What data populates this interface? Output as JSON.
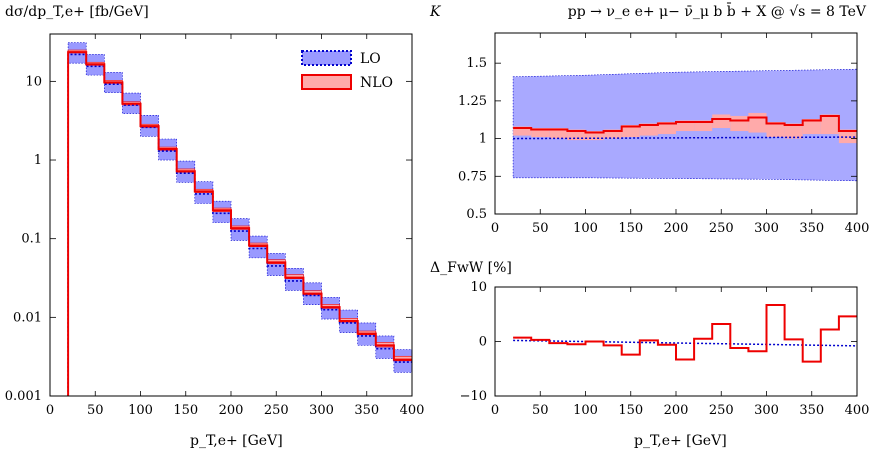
{
  "chart_data": [
    {
      "type": "line",
      "title": "dσ/dp_T,e+ [fb/GeV]",
      "xlabel": "p_T,e+ [GeV]",
      "ylabel": "dσ/dp_T,e+ [fb/GeV]",
      "xlim": [
        0,
        400
      ],
      "ylim": [
        0.001,
        40
      ],
      "yscale": "log",
      "xticks": [
        "0",
        "50",
        "100",
        "150",
        "200",
        "250",
        "300",
        "350",
        "400"
      ],
      "yticks": [
        "0.001",
        "0.01",
        "0.1",
        "1",
        "10"
      ],
      "legend": {
        "placement": "top-right",
        "entries": [
          "LO",
          "NLO"
        ]
      },
      "x_edges": [
        20,
        40,
        60,
        80,
        100,
        120,
        140,
        160,
        180,
        200,
        220,
        240,
        260,
        280,
        300,
        320,
        340,
        360,
        380,
        400
      ],
      "series": [
        {
          "name": "LO",
          "color": "#0000cc",
          "band_color": "#9999ff",
          "values": [
            22,
            15.5,
            9.2,
            5.0,
            2.6,
            1.3,
            0.68,
            0.37,
            0.21,
            0.125,
            0.075,
            0.045,
            0.029,
            0.019,
            0.0125,
            0.0085,
            0.0058,
            0.004,
            0.0027
          ],
          "band_low": [
            17,
            12,
            7.2,
            3.9,
            2.0,
            1.0,
            0.52,
            0.28,
            0.16,
            0.095,
            0.057,
            0.034,
            0.022,
            0.0145,
            0.0095,
            0.0064,
            0.0044,
            0.003,
            0.002
          ],
          "band_high": [
            31,
            22,
            13,
            7.1,
            3.7,
            1.85,
            0.97,
            0.53,
            0.3,
            0.18,
            0.108,
            0.065,
            0.042,
            0.0275,
            0.018,
            0.0124,
            0.0085,
            0.0058,
            0.0039
          ]
        },
        {
          "name": "NLO",
          "color": "#ee0000",
          "band_color": "#ffaaaa",
          "values": [
            23.5,
            16.5,
            9.7,
            5.2,
            2.7,
            1.38,
            0.72,
            0.4,
            0.23,
            0.136,
            0.082,
            0.05,
            0.032,
            0.02,
            0.0135,
            0.009,
            0.0062,
            0.0044,
            0.0029
          ],
          "band_low": [
            23,
            16,
            9.4,
            5.0,
            2.6,
            1.33,
            0.7,
            0.385,
            0.22,
            0.131,
            0.079,
            0.048,
            0.031,
            0.0193,
            0.013,
            0.0087,
            0.006,
            0.0042,
            0.0028
          ],
          "band_high": [
            25,
            17.5,
            10.3,
            5.5,
            2.85,
            1.46,
            0.77,
            0.425,
            0.245,
            0.145,
            0.088,
            0.054,
            0.035,
            0.0218,
            0.0146,
            0.0097,
            0.0067,
            0.0048,
            0.0032
          ]
        }
      ]
    },
    {
      "type": "line",
      "title": "pp → ν_e e+ μ− ν̄_μ b b̄ + X @ √s = 8 TeV",
      "ylabel": "K",
      "xlim": [
        0,
        400
      ],
      "ylim": [
        0.5,
        1.7
      ],
      "xticks": [
        "0",
        "50",
        "100",
        "150",
        "200",
        "250",
        "300",
        "350",
        "400"
      ],
      "yticks": [
        "0.5",
        "0.75",
        "1",
        "1.25",
        "1.5"
      ],
      "x_edges": [
        20,
        40,
        60,
        80,
        100,
        120,
        140,
        160,
        180,
        200,
        220,
        240,
        260,
        280,
        300,
        320,
        340,
        360,
        380,
        400
      ],
      "lo_line": {
        "x": [
          20,
          400
        ],
        "y": [
          1.0,
          1.01
        ]
      },
      "lo_band": {
        "x": [
          20,
          100,
          200,
          300,
          400
        ],
        "low": [
          0.74,
          0.74,
          0.735,
          0.73,
          0.72
        ],
        "high": [
          1.41,
          1.42,
          1.44,
          1.45,
          1.46
        ]
      },
      "series": [
        {
          "name": "NLO",
          "color": "#ee0000",
          "values": [
            1.07,
            1.06,
            1.06,
            1.05,
            1.04,
            1.05,
            1.08,
            1.09,
            1.1,
            1.11,
            1.11,
            1.13,
            1.12,
            1.14,
            1.1,
            1.09,
            1.12,
            1.15,
            1.05
          ],
          "band_low": [
            1.02,
            1.01,
            1.0,
            0.99,
            0.99,
            1.0,
            1.01,
            1.02,
            1.03,
            1.05,
            1.05,
            1.07,
            1.05,
            1.04,
            1.01,
            1.0,
            1.03,
            1.03,
            0.97
          ],
          "band_high": [
            1.08,
            1.07,
            1.07,
            1.06,
            1.05,
            1.06,
            1.09,
            1.1,
            1.11,
            1.12,
            1.12,
            1.16,
            1.15,
            1.17,
            1.11,
            1.1,
            1.13,
            1.16,
            1.06
          ]
        }
      ]
    },
    {
      "type": "line",
      "ylabel": "Δ_FwW [%]",
      "xlabel": "p_T,e+ [GeV]",
      "xlim": [
        0,
        400
      ],
      "ylim": [
        -10,
        10
      ],
      "xticks": [
        "0",
        "50",
        "100",
        "150",
        "200",
        "250",
        "300",
        "350",
        "400"
      ],
      "yticks": [
        "−10",
        "0",
        "10"
      ],
      "x_edges": [
        20,
        40,
        60,
        80,
        100,
        120,
        140,
        160,
        180,
        200,
        220,
        240,
        260,
        280,
        300,
        320,
        340,
        360,
        380,
        400
      ],
      "lo_line": {
        "x": [
          20,
          400
        ],
        "y": [
          0.2,
          -0.8
        ]
      },
      "series": [
        {
          "name": "NLO",
          "color": "#ee0000",
          "values": [
            0.7,
            0.3,
            -0.3,
            -0.5,
            0.0,
            -0.7,
            -2.4,
            0.2,
            -0.6,
            -3.3,
            0.5,
            3.2,
            -1.2,
            -1.8,
            6.7,
            0.4,
            -3.7,
            2.2,
            4.6
          ]
        }
      ]
    }
  ]
}
